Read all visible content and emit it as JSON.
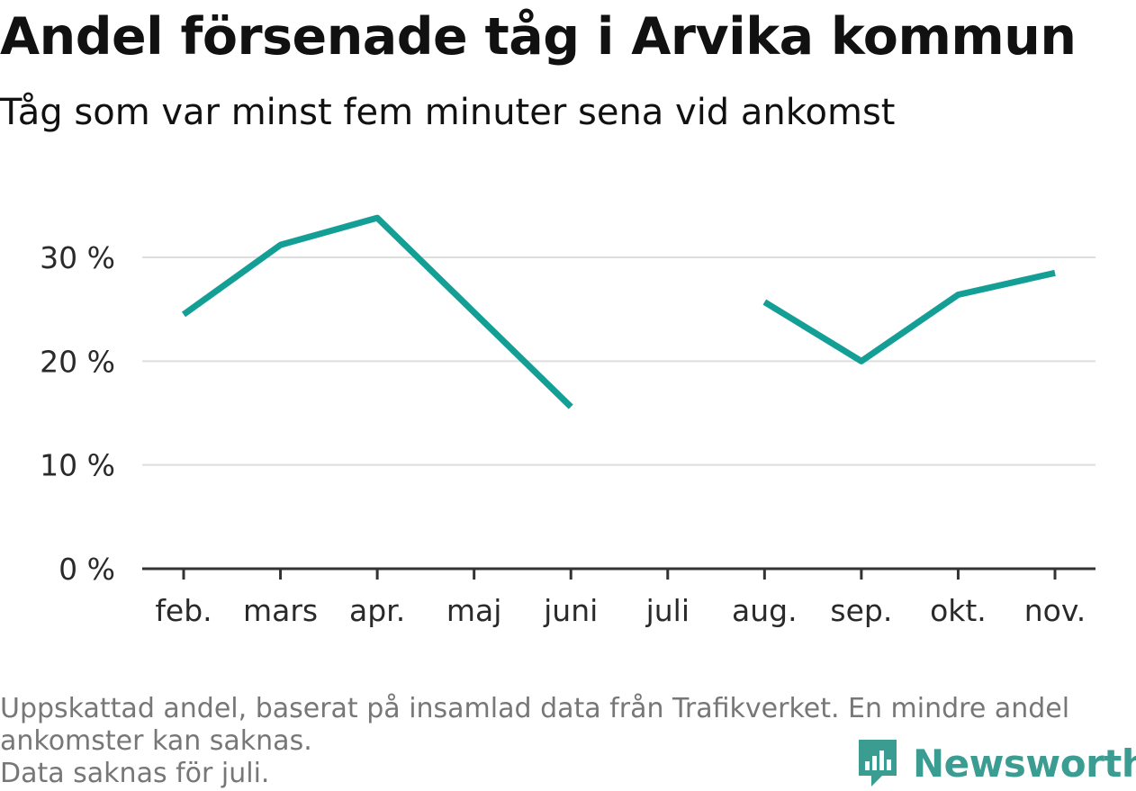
{
  "chart_data": {
    "type": "line",
    "title": "Andel försenade tåg i Arvika kommun",
    "subtitle": "Tåg som var minst fem minuter sena vid ankomst",
    "categories": [
      "feb.",
      "mars",
      "apr.",
      "maj",
      "juni",
      "juli",
      "aug.",
      "sep.",
      "okt.",
      "nov."
    ],
    "series": [
      {
        "values": [
          24.5,
          31.2,
          33.8,
          24.7,
          15.6,
          null,
          25.7,
          20.0,
          26.4,
          28.5
        ]
      }
    ],
    "ylim": [
      0,
      35
    ],
    "yticks": [
      0,
      10,
      20,
      30
    ],
    "ytick_labels": [
      "0 %",
      "10 %",
      "20 %",
      "30 %"
    ],
    "grid": true,
    "line_color": "#149f96",
    "grid_color": "#dddddd",
    "axis_color": "#333333"
  },
  "footer": {
    "line1": "Uppskattad andel, baserat på insamlad data från Trafikverket. En mindre andel",
    "line2": "ankomster kan saknas.",
    "line3": "Data saknas för juli."
  },
  "brand": {
    "name": "Newsworthy",
    "icon": "newsworthy-logo-icon",
    "color": "#3b9c91"
  }
}
